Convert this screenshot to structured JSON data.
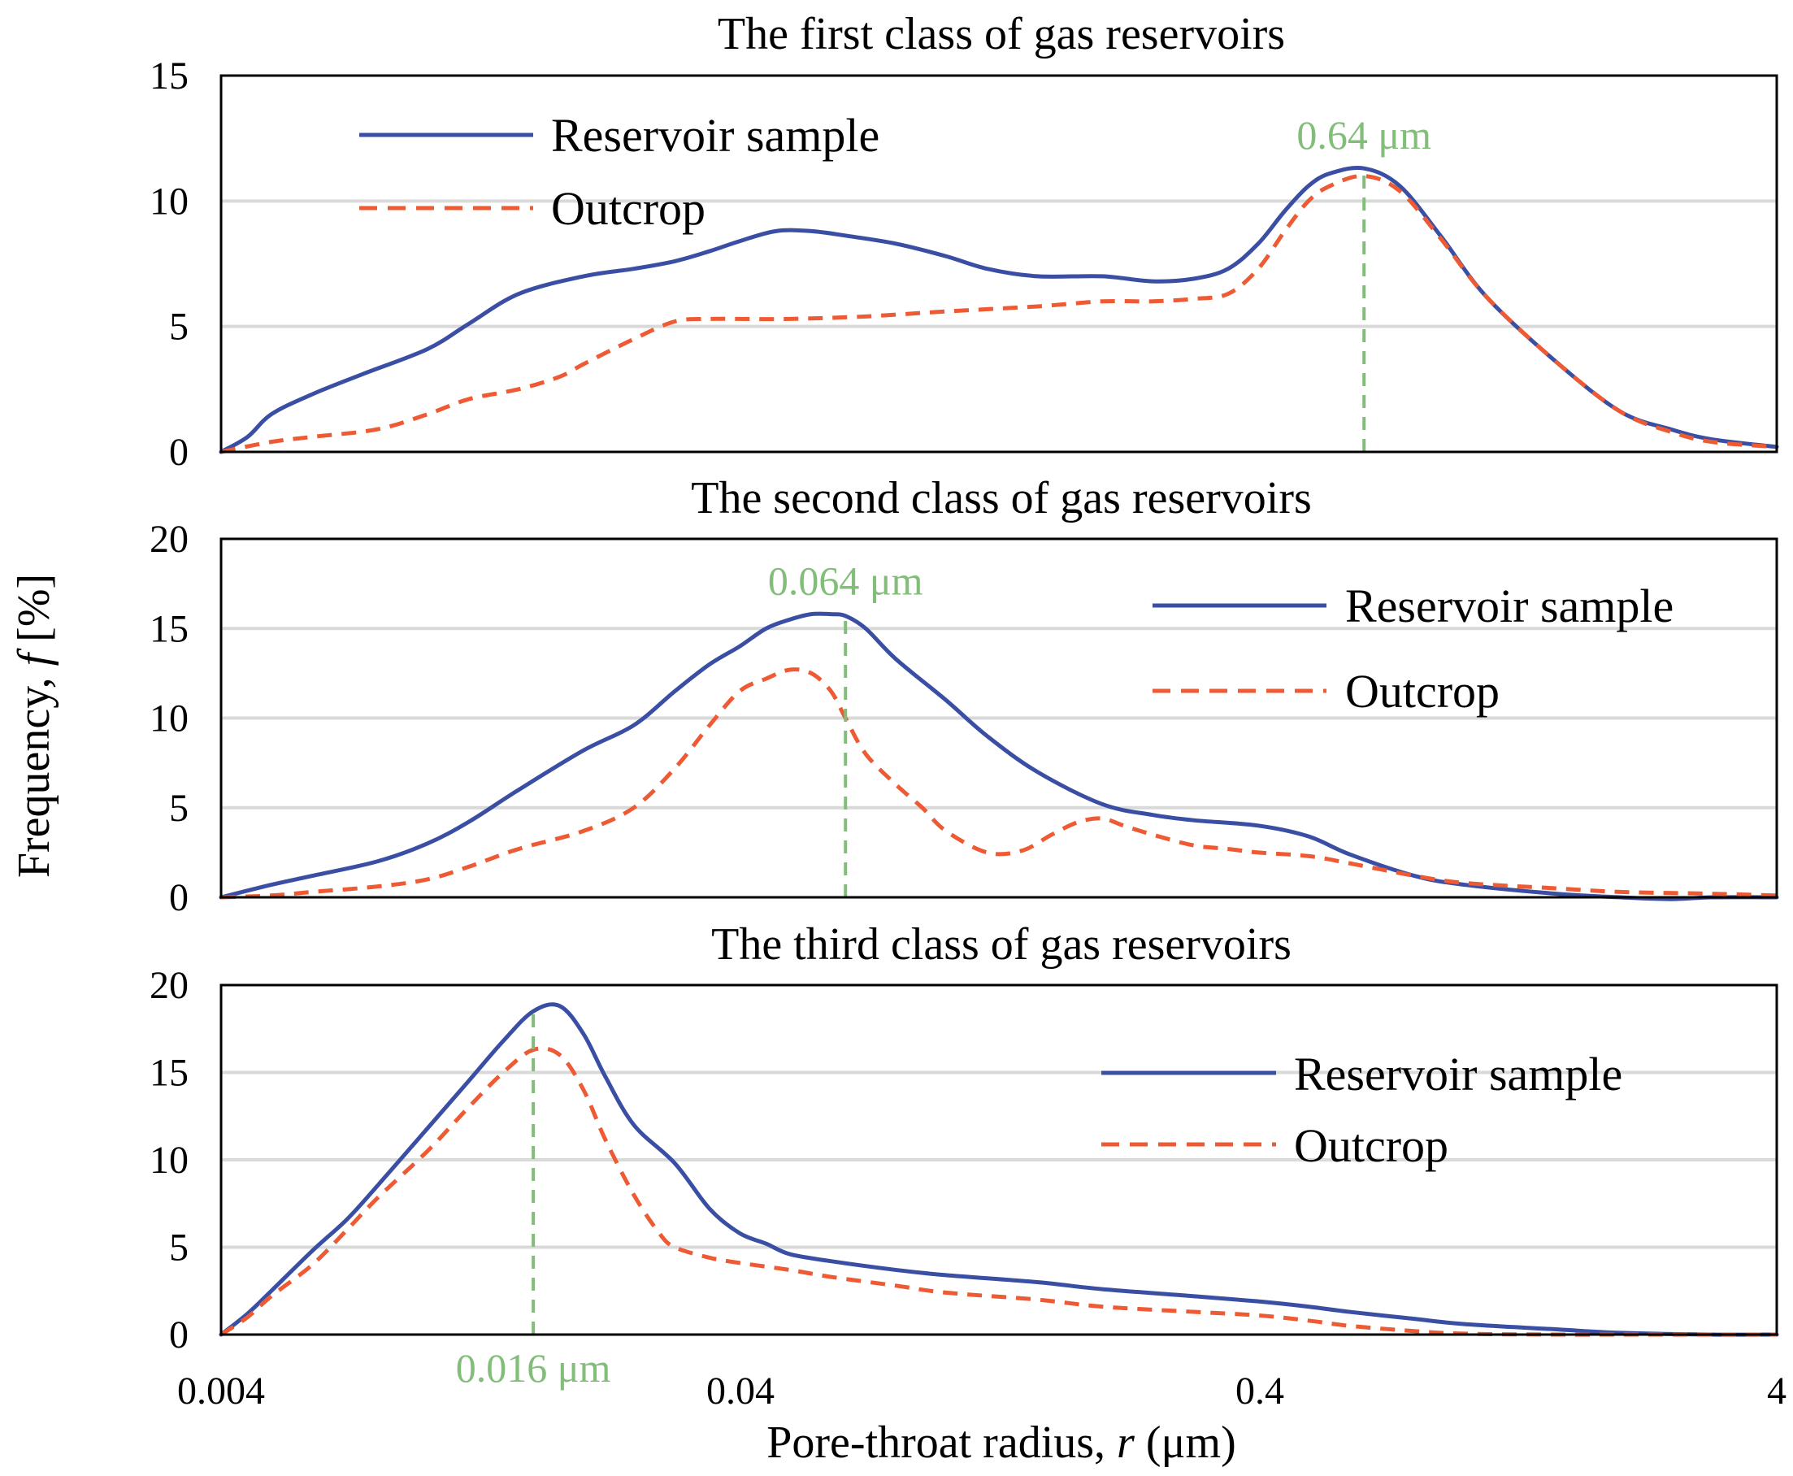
{
  "figure": {
    "ylabel_prefix": "Frequency, ",
    "ylabel_var": "f",
    "ylabel_unit": " [%]",
    "xlabel_prefix": "Pore-throat radius, ",
    "xlabel_var": "r",
    "xlabel_unit": " (μm)",
    "x_tick_labels": [
      "0.004",
      "0.04",
      "0.4",
      "4"
    ]
  },
  "colors": {
    "reservoir": "#3a4fa3",
    "outcrop": "#ee5a33",
    "marker": "#82bd79",
    "grid": "#d9d9d9"
  },
  "chart_data": [
    {
      "type": "line",
      "title": "The first class of gas reservoirs",
      "xscale": "log",
      "xlim": [
        0.004,
        4
      ],
      "ylim": [
        0,
        15
      ],
      "yticks": [
        0,
        5,
        10,
        15
      ],
      "ytick_labels": [
        "0",
        "5",
        "10",
        "15"
      ],
      "legend": "top-left",
      "annotation": {
        "x": 0.64,
        "label": "0.64 μm",
        "label_position": "above"
      },
      "series": [
        {
          "name": "Reservoir sample",
          "x": [
            0.004,
            0.0045,
            0.005,
            0.006,
            0.0075,
            0.01,
            0.012,
            0.015,
            0.02,
            0.025,
            0.03,
            0.035,
            0.04,
            0.047,
            0.055,
            0.065,
            0.08,
            0.1,
            0.12,
            0.15,
            0.2,
            0.25,
            0.3,
            0.35,
            0.4,
            0.45,
            0.5,
            0.55,
            0.64,
            0.75,
            0.9,
            1.1,
            1.5,
            2.0,
            2.5,
            3.0,
            4.0
          ],
          "y": [
            0.0,
            0.6,
            1.5,
            2.3,
            3.1,
            4.1,
            5.1,
            6.3,
            7.0,
            7.3,
            7.6,
            8.0,
            8.4,
            8.8,
            8.8,
            8.6,
            8.3,
            7.8,
            7.3,
            7.0,
            7.0,
            6.8,
            6.9,
            7.3,
            8.3,
            9.6,
            10.6,
            11.1,
            11.3,
            10.6,
            8.6,
            6.2,
            3.6,
            1.6,
            0.9,
            0.5,
            0.2
          ]
        },
        {
          "name": "Outcrop",
          "x": [
            0.004,
            0.005,
            0.006,
            0.008,
            0.01,
            0.012,
            0.015,
            0.018,
            0.02,
            0.025,
            0.03,
            0.035,
            0.04,
            0.05,
            0.07,
            0.1,
            0.15,
            0.2,
            0.25,
            0.3,
            0.35,
            0.4,
            0.45,
            0.5,
            0.55,
            0.64,
            0.75,
            0.9,
            1.1,
            1.5,
            2.0,
            2.5,
            3.0,
            4.0
          ],
          "y": [
            0.0,
            0.4,
            0.6,
            0.9,
            1.5,
            2.1,
            2.5,
            3.0,
            3.5,
            4.5,
            5.2,
            5.3,
            5.3,
            5.3,
            5.4,
            5.6,
            5.8,
            6.0,
            6.0,
            6.1,
            6.3,
            7.3,
            8.8,
            10.0,
            10.6,
            11.0,
            10.4,
            8.5,
            6.2,
            3.6,
            1.6,
            0.8,
            0.4,
            0.2
          ]
        }
      ]
    },
    {
      "type": "line",
      "title": "The second class of gas reservoirs",
      "xscale": "log",
      "xlim": [
        0.004,
        4
      ],
      "ylim": [
        0,
        20
      ],
      "yticks": [
        0,
        5,
        10,
        15,
        20
      ],
      "ytick_labels": [
        "0",
        "5",
        "10",
        "15",
        "20"
      ],
      "legend": "top-right",
      "annotation": {
        "x": 0.064,
        "label": "0.064 μm",
        "label_position": "above"
      },
      "series": [
        {
          "name": "Reservoir sample",
          "x": [
            0.004,
            0.005,
            0.006,
            0.008,
            0.01,
            0.012,
            0.015,
            0.02,
            0.025,
            0.03,
            0.035,
            0.04,
            0.045,
            0.05,
            0.055,
            0.06,
            0.064,
            0.07,
            0.08,
            0.1,
            0.12,
            0.15,
            0.2,
            0.25,
            0.3,
            0.4,
            0.5,
            0.6,
            0.8,
            1.0,
            1.5,
            2.0,
            2.5,
            3.0,
            4.0
          ],
          "y": [
            0.0,
            0.7,
            1.2,
            2.0,
            3.0,
            4.2,
            6.0,
            8.2,
            9.6,
            11.5,
            13.0,
            14.0,
            15.0,
            15.5,
            15.8,
            15.8,
            15.7,
            15.0,
            13.3,
            11.0,
            9.0,
            7.0,
            5.2,
            4.6,
            4.3,
            4.0,
            3.4,
            2.4,
            1.2,
            0.7,
            0.2,
            0.0,
            -0.1,
            0.0,
            0.0
          ]
        },
        {
          "name": "Outcrop",
          "x": [
            0.004,
            0.005,
            0.006,
            0.008,
            0.01,
            0.012,
            0.015,
            0.02,
            0.025,
            0.03,
            0.035,
            0.04,
            0.045,
            0.05,
            0.055,
            0.06,
            0.064,
            0.07,
            0.08,
            0.09,
            0.1,
            0.12,
            0.14,
            0.16,
            0.18,
            0.2,
            0.22,
            0.25,
            0.3,
            0.35,
            0.4,
            0.5,
            0.6,
            0.8,
            1.0,
            1.5,
            2.0,
            3.0,
            4.0
          ],
          "y": [
            0.0,
            0.1,
            0.3,
            0.6,
            1.0,
            1.7,
            2.7,
            3.7,
            5.0,
            7.2,
            9.6,
            11.5,
            12.2,
            12.7,
            12.5,
            11.5,
            10.0,
            8.0,
            6.3,
            5.0,
            3.7,
            2.5,
            2.6,
            3.5,
            4.2,
            4.4,
            4.0,
            3.5,
            2.9,
            2.7,
            2.5,
            2.3,
            1.9,
            1.2,
            0.8,
            0.5,
            0.3,
            0.2,
            0.1
          ]
        }
      ]
    },
    {
      "type": "line",
      "title": "The third class of gas reservoirs",
      "xscale": "log",
      "xlim": [
        0.004,
        4
      ],
      "ylim": [
        0,
        20
      ],
      "yticks": [
        0,
        5,
        10,
        15,
        20
      ],
      "ytick_labels": [
        "0",
        "5",
        "10",
        "15",
        "20"
      ],
      "legend": "top-right",
      "annotation": {
        "x": 0.016,
        "label": "0.016 μm",
        "label_position": "below"
      },
      "series": [
        {
          "name": "Reservoir sample",
          "x": [
            0.004,
            0.0045,
            0.005,
            0.006,
            0.007,
            0.008,
            0.01,
            0.012,
            0.014,
            0.016,
            0.018,
            0.02,
            0.022,
            0.025,
            0.03,
            0.035,
            0.04,
            0.045,
            0.05,
            0.06,
            0.08,
            0.1,
            0.15,
            0.2,
            0.3,
            0.4,
            0.5,
            0.6,
            0.8,
            1.0,
            1.5,
            2.0,
            3.0,
            4.0
          ],
          "y": [
            0.0,
            1.2,
            2.5,
            4.8,
            6.6,
            8.5,
            11.8,
            14.5,
            16.8,
            18.5,
            18.8,
            17.2,
            14.8,
            12.0,
            9.8,
            7.2,
            5.8,
            5.2,
            4.6,
            4.2,
            3.7,
            3.4,
            3.0,
            2.6,
            2.2,
            1.9,
            1.6,
            1.3,
            0.9,
            0.6,
            0.3,
            0.1,
            0.0,
            0.0
          ]
        },
        {
          "name": "Outcrop",
          "x": [
            0.004,
            0.0045,
            0.005,
            0.006,
            0.007,
            0.008,
            0.01,
            0.012,
            0.014,
            0.016,
            0.018,
            0.02,
            0.022,
            0.025,
            0.028,
            0.03,
            0.035,
            0.04,
            0.05,
            0.06,
            0.08,
            0.1,
            0.15,
            0.2,
            0.3,
            0.4,
            0.5,
            0.6,
            0.8,
            1.0,
            1.5,
            2.0,
            3.0,
            4.0
          ],
          "y": [
            0.0,
            1.0,
            2.2,
            4.0,
            6.0,
            7.8,
            10.5,
            13.0,
            15.0,
            16.3,
            16.0,
            14.0,
            11.2,
            8.0,
            5.8,
            5.0,
            4.4,
            4.1,
            3.7,
            3.3,
            2.8,
            2.4,
            2.0,
            1.6,
            1.3,
            1.1,
            0.8,
            0.5,
            0.2,
            0.05,
            0.0,
            0.0,
            0.0,
            0.0
          ]
        }
      ]
    }
  ]
}
